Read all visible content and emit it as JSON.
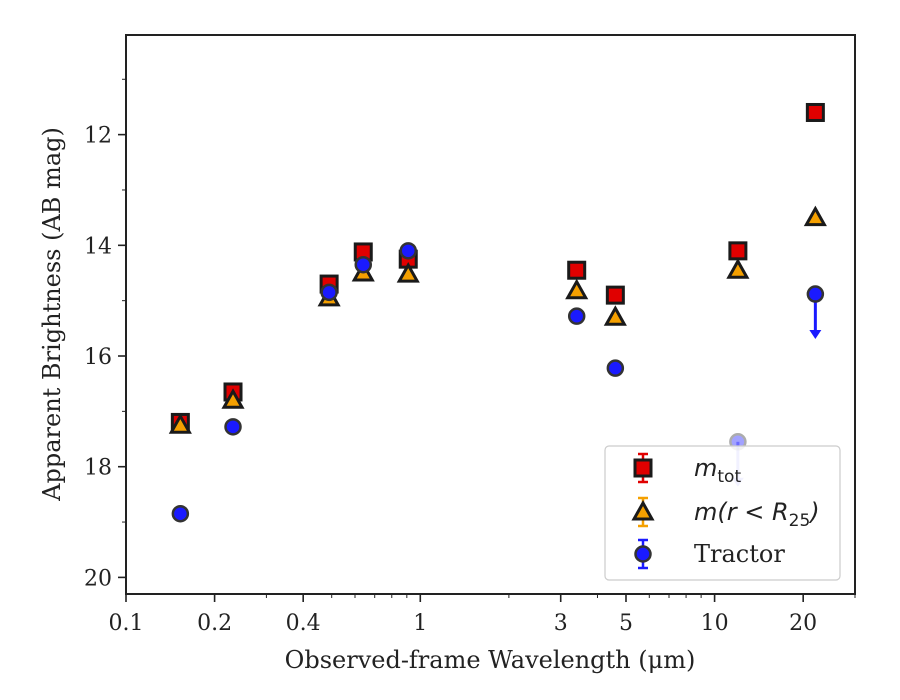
{
  "chart_data": {
    "type": "scatter",
    "xlabel": "Observed-frame Wavelength (μm)",
    "ylabel": "Apparent Brightness (AB mag)",
    "x_scale": "log",
    "xlim": [
      0.1,
      30
    ],
    "ylim": [
      20.3,
      10.2
    ],
    "y_inverted": true,
    "x_ticks": [
      {
        "value": 0.1,
        "label": "0.1"
      },
      {
        "value": 0.2,
        "label": "0.2"
      },
      {
        "value": 0.4,
        "label": "0.4"
      },
      {
        "value": 1,
        "label": "1"
      },
      {
        "value": 3,
        "label": "3"
      },
      {
        "value": 5,
        "label": "5"
      },
      {
        "value": 10,
        "label": "10"
      },
      {
        "value": 20,
        "label": "20"
      }
    ],
    "y_ticks": [
      {
        "value": 12,
        "label": "12"
      },
      {
        "value": 14,
        "label": "14"
      },
      {
        "value": 16,
        "label": "16"
      },
      {
        "value": 18,
        "label": "18"
      },
      {
        "value": 20,
        "label": "20"
      }
    ],
    "grid": false,
    "legend_position": "lower-right",
    "series": [
      {
        "name": "m_tot",
        "legend_text": "m",
        "legend_sub": "tot",
        "marker": "square",
        "color": "#e00000",
        "points": [
          {
            "x": 0.153,
            "y": 17.2
          },
          {
            "x": 0.231,
            "y": 16.65
          },
          {
            "x": 0.49,
            "y": 14.7
          },
          {
            "x": 0.64,
            "y": 14.12
          },
          {
            "x": 0.91,
            "y": 14.25
          },
          {
            "x": 3.4,
            "y": 14.45
          },
          {
            "x": 4.6,
            "y": 14.9
          },
          {
            "x": 12.0,
            "y": 14.1
          },
          {
            "x": 22.0,
            "y": 11.6
          }
        ]
      },
      {
        "name": "m(r < R25)",
        "legend_text": "m(r < R",
        "legend_sub": "25",
        "legend_suffix": ")",
        "marker": "triangle",
        "color": "#f5a000",
        "points": [
          {
            "x": 0.153,
            "y": 17.25
          },
          {
            "x": 0.231,
            "y": 16.8
          },
          {
            "x": 0.49,
            "y": 14.95
          },
          {
            "x": 0.64,
            "y": 14.5
          },
          {
            "x": 0.91,
            "y": 14.52
          },
          {
            "x": 3.4,
            "y": 14.82
          },
          {
            "x": 4.6,
            "y": 15.3
          },
          {
            "x": 12.0,
            "y": 14.45
          },
          {
            "x": 22.0,
            "y": 13.5
          }
        ]
      },
      {
        "name": "Tractor",
        "legend_text": "Tractor",
        "marker": "circle",
        "color": "#1a1aff",
        "points": [
          {
            "x": 0.153,
            "y": 18.85
          },
          {
            "x": 0.231,
            "y": 17.28
          },
          {
            "x": 0.49,
            "y": 14.85
          },
          {
            "x": 0.64,
            "y": 14.35
          },
          {
            "x": 0.91,
            "y": 14.1
          },
          {
            "x": 3.4,
            "y": 15.28
          },
          {
            "x": 4.6,
            "y": 16.22
          },
          {
            "x": 12.0,
            "y": 17.55,
            "upper_limit": true,
            "faded": true
          },
          {
            "x": 22.0,
            "y": 14.88,
            "upper_limit": true
          }
        ]
      }
    ]
  }
}
